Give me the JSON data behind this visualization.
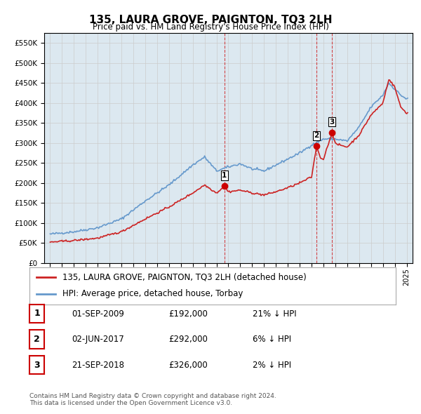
{
  "title": "135, LAURA GROVE, PAIGNTON, TQ3 2LH",
  "subtitle": "Price paid vs. HM Land Registry's House Price Index (HPI)",
  "hpi_label": "HPI: Average price, detached house, Torbay",
  "property_label": "135, LAURA GROVE, PAIGNTON, TQ3 2LH (detached house)",
  "legend_footer": "Contains HM Land Registry data © Crown copyright and database right 2024.\nThis data is licensed under the Open Government Licence v3.0.",
  "transactions": [
    {
      "num": 1,
      "date": "01-SEP-2009",
      "price": 192000,
      "pct": "21%",
      "dir": "↓"
    },
    {
      "num": 2,
      "date": "02-JUN-2017",
      "price": 292000,
      "pct": "6%",
      "dir": "↓"
    },
    {
      "num": 3,
      "date": "21-SEP-2018",
      "price": 326000,
      "pct": "2%",
      "dir": "↓"
    }
  ],
  "transaction_dates": [
    2009.67,
    2017.42,
    2018.72
  ],
  "transaction_prices": [
    192000,
    292000,
    326000
  ],
  "ylim": [
    0,
    575000
  ],
  "yticks": [
    0,
    50000,
    100000,
    150000,
    200000,
    250000,
    300000,
    350000,
    400000,
    450000,
    500000,
    550000
  ],
  "hpi_color": "#6699cc",
  "property_color": "#cc2222",
  "marker_color": "#cc0000",
  "vline_color": "#cc0000",
  "grid_color": "#cccccc",
  "bg_color": "#f0f4f8",
  "plot_bg_color": "#dce8f0",
  "title_fontsize": 11,
  "subtitle_fontsize": 9,
  "tick_fontsize": 8,
  "legend_fontsize": 8.5
}
